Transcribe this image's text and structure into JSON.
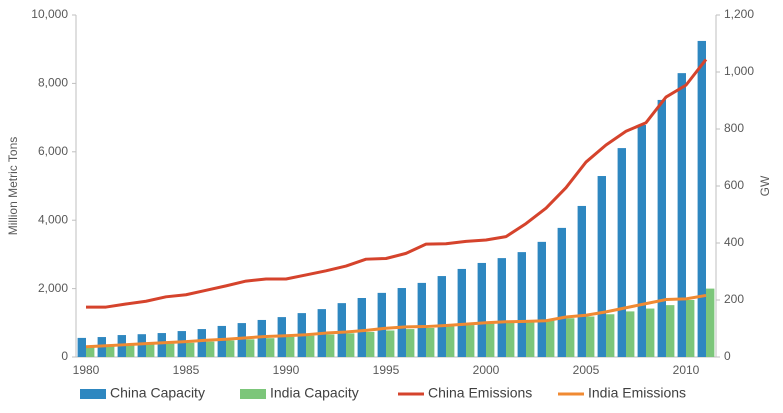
{
  "chart_data": {
    "type": "bar",
    "y_label": "Million Metric Tons",
    "y2_label": "GW",
    "categories": [
      "1980",
      null,
      null,
      null,
      null,
      "1985",
      null,
      null,
      null,
      null,
      "1990",
      null,
      null,
      null,
      null,
      "1995",
      null,
      null,
      null,
      null,
      "2000",
      null,
      null,
      null,
      null,
      "2005",
      null,
      null,
      null,
      null,
      "2010",
      null
    ],
    "series": [
      {
        "name": "China Capacity",
        "type": "bar",
        "axis": "y2",
        "color": "#2e87c0",
        "values": [
          67,
          70,
          77,
          80,
          84,
          91,
          98,
          109,
          119,
          130,
          140,
          154,
          168,
          189,
          207,
          225,
          242,
          260,
          284,
          309,
          330,
          347,
          368,
          404,
          453,
          530,
          635,
          733,
          814,
          902,
          996,
          1109
        ]
      },
      {
        "name": "India Capacity",
        "type": "bar",
        "axis": "y2",
        "color": "#7cc67a",
        "values": [
          35,
          38,
          41,
          44,
          47,
          50,
          54,
          58,
          62,
          66,
          71,
          75,
          79,
          83,
          88,
          93,
          98,
          102,
          107,
          112,
          117,
          122,
          126,
          130,
          136,
          142,
          150,
          160,
          170,
          182,
          200,
          240
        ]
      },
      {
        "name": "China Emissions",
        "type": "line",
        "axis": "y",
        "color": "#d5432c",
        "values": [
          1460,
          1460,
          1550,
          1630,
          1760,
          1820,
          1950,
          2080,
          2220,
          2280,
          2280,
          2400,
          2520,
          2660,
          2860,
          2880,
          3030,
          3300,
          3310,
          3380,
          3420,
          3520,
          3900,
          4350,
          4950,
          5700,
          6200,
          6600,
          6850,
          7600,
          7950,
          8700
        ]
      },
      {
        "name": "India Emissions",
        "type": "line",
        "axis": "y",
        "color": "#f08a32",
        "values": [
          300,
          330,
          360,
          390,
          420,
          450,
          490,
          520,
          560,
          600,
          620,
          650,
          700,
          730,
          780,
          840,
          880,
          890,
          920,
          960,
          1000,
          1030,
          1040,
          1060,
          1170,
          1220,
          1320,
          1440,
          1560,
          1680,
          1700,
          1800
        ]
      }
    ],
    "ylim": [
      0,
      10000
    ],
    "yticks": [
      0,
      {
        "value": 2000,
        "label": "2,000"
      },
      {
        "value": 4000,
        "label": "4,000"
      },
      {
        "value": 6000,
        "label": "6,000"
      },
      {
        "value": 8000,
        "label": "8,000"
      },
      {
        "value": 10000,
        "label": "10,000"
      }
    ],
    "y2lim": [
      0,
      1200
    ],
    "y2ticks": [
      0,
      200,
      400,
      600,
      800,
      {
        "value": 1000,
        "label": "1,000"
      },
      {
        "value": 1200,
        "label": "1,200"
      }
    ],
    "grid": false,
    "legend": "bottom"
  }
}
